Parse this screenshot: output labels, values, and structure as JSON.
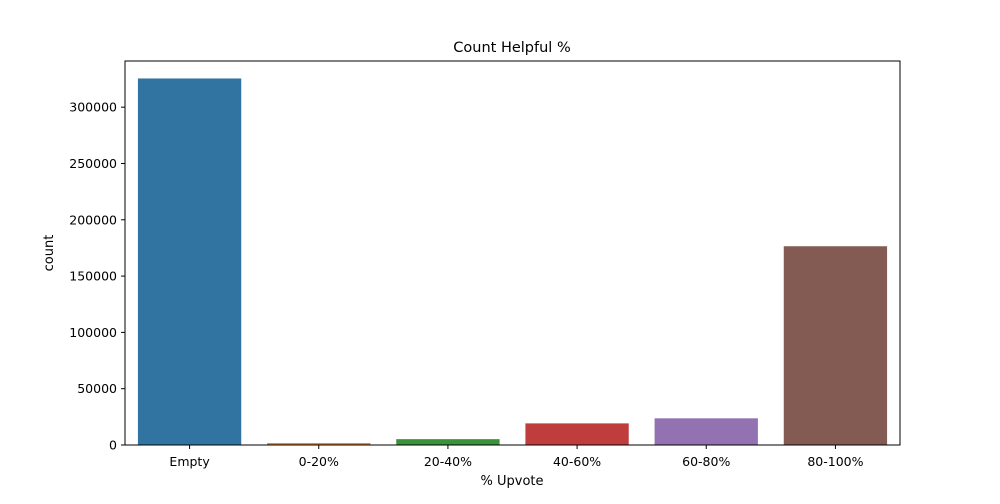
{
  "chart_data": {
    "type": "bar",
    "title": "Count Helpful %",
    "xlabel": "% Upvote",
    "ylabel": "count",
    "categories": [
      "Empty",
      "0-20%",
      "20-40%",
      "40-60%",
      "60-80%",
      "80-100%"
    ],
    "values": [
      325500,
      1700,
      5200,
      19200,
      23700,
      176500
    ],
    "colors": [
      "#3274a1",
      "#e1812c",
      "#3a923a",
      "#c03d3e",
      "#9372b2",
      "#845b53"
    ],
    "ylim": [
      0,
      341000
    ],
    "yticks": [
      0,
      50000,
      100000,
      150000,
      200000,
      250000,
      300000
    ],
    "grid": false,
    "legend": "none"
  }
}
